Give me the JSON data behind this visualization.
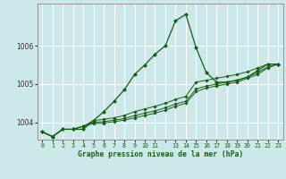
{
  "title": "Graphe pression niveau de la mer (hPa)",
  "bg_color": "#cce8e8",
  "grid_color": "#ffffff",
  "line_color": "#1a5c1a",
  "xlim": [
    -0.5,
    23.5
  ],
  "ylim": [
    1003.55,
    1007.1
  ],
  "yticks": [
    1004,
    1005,
    1006
  ],
  "xtick_labels": [
    "0",
    "1",
    "2",
    "3",
    "4",
    "5",
    "6",
    "7",
    "8",
    "9",
    "10",
    "11",
    "",
    "13",
    "14",
    "15",
    "16",
    "17",
    "18",
    "19",
    "20",
    "21",
    "22",
    "23"
  ],
  "series": [
    [
      1003.75,
      1003.63,
      1003.82,
      1003.82,
      1003.82,
      1004.05,
      1004.28,
      1004.55,
      1004.85,
      1005.25,
      1005.5,
      1005.78,
      1006.0,
      1006.65,
      1006.82,
      1005.95,
      1005.3,
      1005.05,
      1005.05,
      1005.1,
      1005.18,
      1005.35,
      1005.52,
      1005.52
    ],
    [
      1003.75,
      1003.63,
      1003.82,
      1003.82,
      1003.9,
      1004.05,
      1004.08,
      1004.12,
      1004.18,
      1004.28,
      1004.35,
      1004.42,
      1004.5,
      1004.6,
      1004.68,
      1005.05,
      1005.1,
      1005.15,
      1005.2,
      1005.25,
      1005.32,
      1005.42,
      1005.52,
      1005.52
    ],
    [
      1003.75,
      1003.63,
      1003.82,
      1003.82,
      1003.9,
      1004.0,
      1004.02,
      1004.06,
      1004.1,
      1004.18,
      1004.24,
      1004.3,
      1004.38,
      1004.48,
      1004.55,
      1004.87,
      1004.95,
      1005.0,
      1005.05,
      1005.1,
      1005.18,
      1005.3,
      1005.45,
      1005.52
    ],
    [
      1003.75,
      1003.63,
      1003.82,
      1003.82,
      1003.9,
      1003.97,
      1003.98,
      1004.02,
      1004.06,
      1004.12,
      1004.18,
      1004.24,
      1004.32,
      1004.42,
      1004.5,
      1004.8,
      1004.9,
      1004.95,
      1005.0,
      1005.05,
      1005.15,
      1005.25,
      1005.42,
      1005.52
    ]
  ]
}
